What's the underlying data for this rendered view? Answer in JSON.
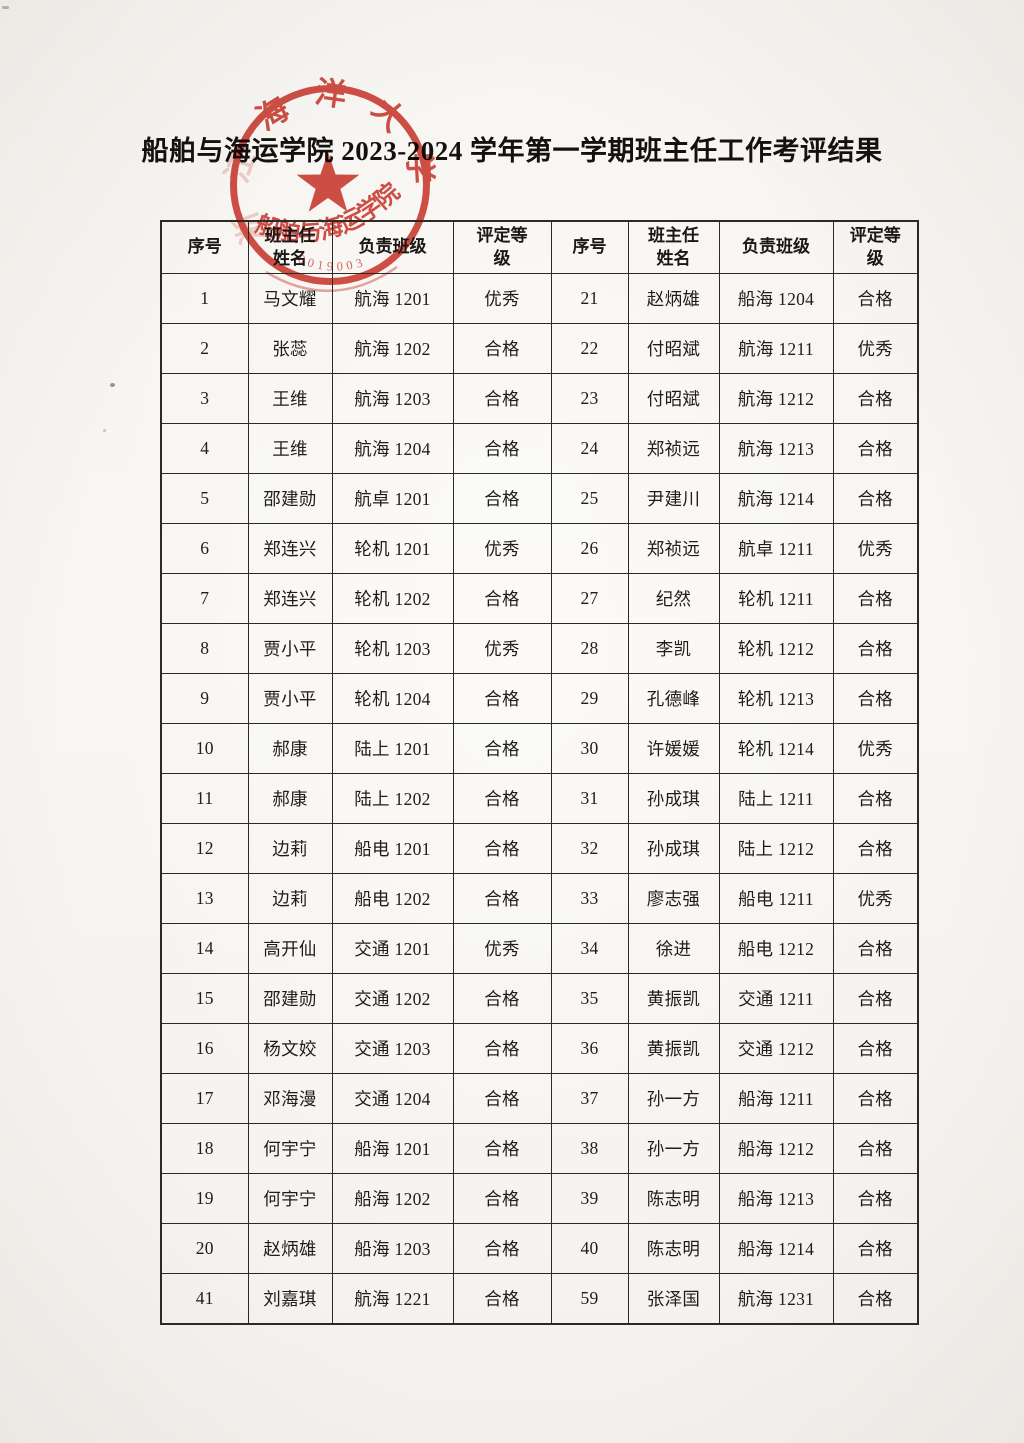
{
  "page": {
    "title": "船舶与海运学院 2023-2024 学年第一学期班主任工作考评结果"
  },
  "stamp": {
    "color": "#cf3d33",
    "university_arc_faded": "浙江",
    "university_arc_visible": "海洋大学",
    "college_text": "船舶与海运学院",
    "serial_number": "0019003",
    "star_icon": "red-five-point-star"
  },
  "table": {
    "headers": [
      "序号",
      "班主任\n姓名",
      "负责班级",
      "评定等\n级",
      "序号",
      "班主任\n姓名",
      "负责班级",
      "评定等\n级"
    ],
    "rows": [
      [
        "1",
        "马文耀",
        "航海 1201",
        "优秀",
        "21",
        "赵炳雄",
        "船海 1204",
        "合格"
      ],
      [
        "2",
        "张蕊",
        "航海 1202",
        "合格",
        "22",
        "付昭斌",
        "航海 1211",
        "优秀"
      ],
      [
        "3",
        "王维",
        "航海 1203",
        "合格",
        "23",
        "付昭斌",
        "航海 1212",
        "合格"
      ],
      [
        "4",
        "王维",
        "航海 1204",
        "合格",
        "24",
        "郑祯远",
        "航海 1213",
        "合格"
      ],
      [
        "5",
        "邵建勋",
        "航卓 1201",
        "合格",
        "25",
        "尹建川",
        "航海 1214",
        "合格"
      ],
      [
        "6",
        "郑连兴",
        "轮机 1201",
        "优秀",
        "26",
        "郑祯远",
        "航卓 1211",
        "优秀"
      ],
      [
        "7",
        "郑连兴",
        "轮机 1202",
        "合格",
        "27",
        "纪然",
        "轮机 1211",
        "合格"
      ],
      [
        "8",
        "贾小平",
        "轮机 1203",
        "优秀",
        "28",
        "李凯",
        "轮机 1212",
        "合格"
      ],
      [
        "9",
        "贾小平",
        "轮机 1204",
        "合格",
        "29",
        "孔德峰",
        "轮机 1213",
        "合格"
      ],
      [
        "10",
        "郝康",
        "陆上 1201",
        "合格",
        "30",
        "许媛媛",
        "轮机 1214",
        "优秀"
      ],
      [
        "11",
        "郝康",
        "陆上 1202",
        "合格",
        "31",
        "孙成琪",
        "陆上 1211",
        "合格"
      ],
      [
        "12",
        "边莉",
        "船电 1201",
        "合格",
        "32",
        "孙成琪",
        "陆上 1212",
        "合格"
      ],
      [
        "13",
        "边莉",
        "船电 1202",
        "合格",
        "33",
        "廖志强",
        "船电 1211",
        "优秀"
      ],
      [
        "14",
        "高开仙",
        "交通 1201",
        "优秀",
        "34",
        "徐进",
        "船电 1212",
        "合格"
      ],
      [
        "15",
        "邵建勋",
        "交通 1202",
        "合格",
        "35",
        "黄振凯",
        "交通 1211",
        "合格"
      ],
      [
        "16",
        "杨文姣",
        "交通 1203",
        "合格",
        "36",
        "黄振凯",
        "交通 1212",
        "合格"
      ],
      [
        "17",
        "邓海漫",
        "交通 1204",
        "合格",
        "37",
        "孙一方",
        "船海 1211",
        "合格"
      ],
      [
        "18",
        "何宇宁",
        "船海 1201",
        "合格",
        "38",
        "孙一方",
        "船海 1212",
        "合格"
      ],
      [
        "19",
        "何宇宁",
        "船海 1202",
        "合格",
        "39",
        "陈志明",
        "船海 1213",
        "合格"
      ],
      [
        "20",
        "赵炳雄",
        "船海 1203",
        "合格",
        "40",
        "陈志明",
        "船海 1214",
        "合格"
      ],
      [
        "41",
        "刘嘉琪",
        "航海 1221",
        "合格",
        "59",
        "张泽国",
        "航海 1231",
        "合格"
      ]
    ]
  }
}
